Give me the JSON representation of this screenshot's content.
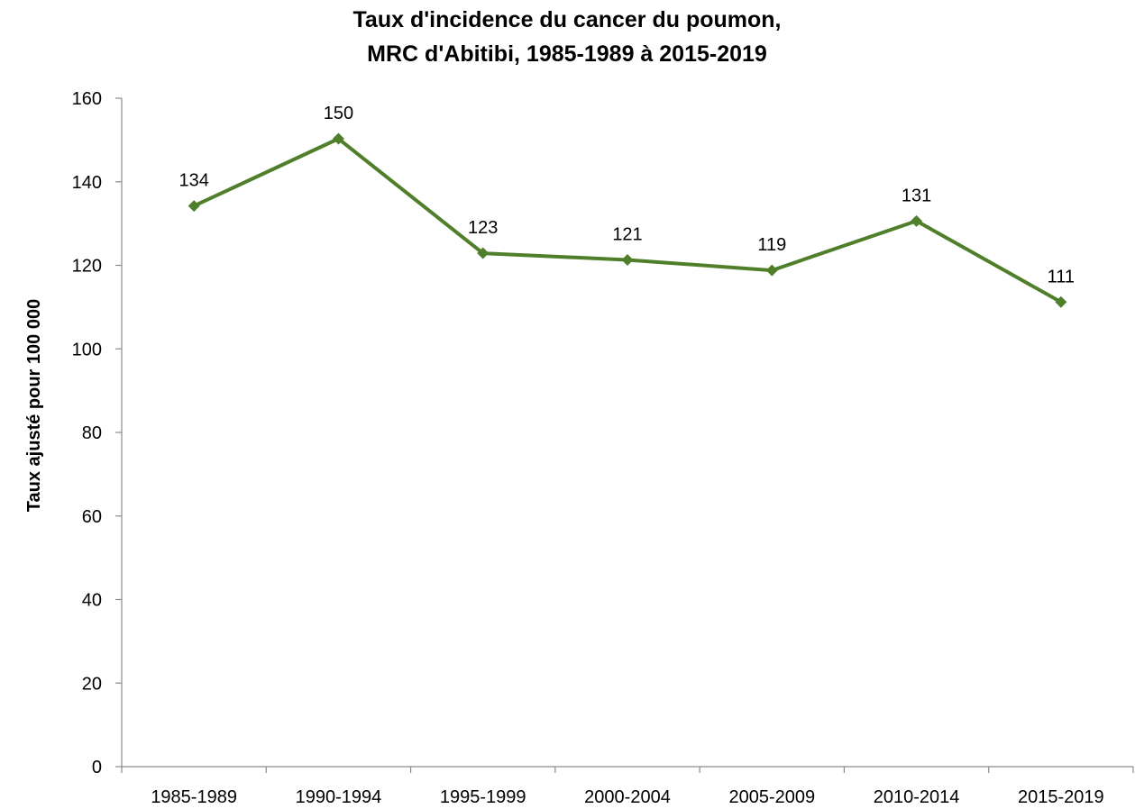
{
  "chart_data": {
    "type": "line",
    "title_lines": [
      "Taux d'incidence du cancer du poumon,",
      "MRC d'Abitibi, 1985-1989 à 2015-2019"
    ],
    "xlabel": "",
    "ylabel": "Taux ajusté pour 100 000",
    "categories": [
      "1985-1989",
      "1990-1994",
      "1995-1999",
      "2000-2004",
      "2005-2009",
      "2010-2014",
      "2015-2019"
    ],
    "series": [
      {
        "values": [
          134.2,
          150.3,
          122.9,
          121.3,
          118.8,
          130.6,
          111.2
        ],
        "data_labels": [
          "134",
          "150",
          "123",
          "121",
          "119",
          "131",
          "111"
        ],
        "color": "#4f7f2a",
        "marker": "diamond"
      }
    ],
    "ylim": [
      0,
      160
    ],
    "yticks": [
      "0",
      "20",
      "40",
      "60",
      "80",
      "100",
      "120",
      "140",
      "160"
    ],
    "grid": false,
    "legend": "none",
    "colors": {
      "line": "#4f7f2a",
      "axis": "#8c8c8c",
      "text": "#000000"
    }
  }
}
